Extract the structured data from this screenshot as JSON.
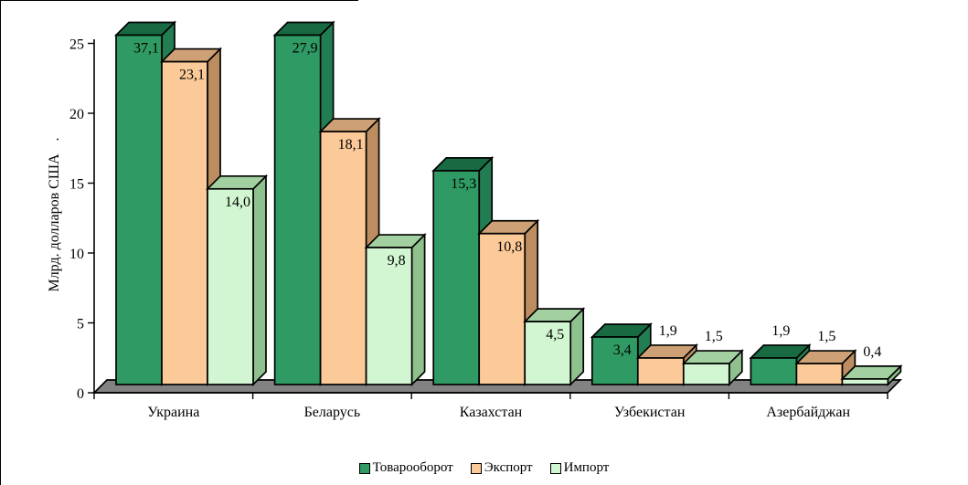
{
  "chart_data": {
    "type": "bar",
    "projection": "3d-oblique",
    "title": "",
    "ylabel": "Млрд. долларов США",
    "ylabel_suffix": ".",
    "xlabel": "",
    "categories": [
      "Украина",
      "Беларусь",
      "Казахстан",
      "Узбекистан",
      "Азербайджан"
    ],
    "series": [
      {
        "name": "Товарооборот",
        "values": [
          37.1,
          27.9,
          15.3,
          3.4,
          1.9
        ],
        "labels": [
          "37,1",
          "27,9",
          "15,3",
          "3,4",
          "1,9"
        ],
        "color": "#2F9A63",
        "top_color": "#186A43",
        "side_color": "#227E52"
      },
      {
        "name": "Экспорт",
        "values": [
          23.1,
          18.1,
          10.8,
          1.9,
          1.5
        ],
        "labels": [
          "23,1",
          "18,1",
          "10,8",
          "1,9",
          "1,5"
        ],
        "color": "#FCCA98",
        "top_color": "#CDA175",
        "side_color": "#BC8D60"
      },
      {
        "name": "Импорт",
        "values": [
          14.0,
          9.8,
          4.5,
          1.5,
          0.4
        ],
        "labels": [
          "14,0",
          "9,8",
          "4,5",
          "1,5",
          "0,4"
        ],
        "color": "#D2F6D1",
        "top_color": "#A2D0A0",
        "side_color": "#8EC18E"
      }
    ],
    "y_ticks": [
      "0",
      "5",
      "10",
      "15",
      "20",
      "25"
    ],
    "y_tick_values": [
      0,
      5,
      10,
      15,
      20,
      25
    ],
    "ylim": [
      0,
      25
    ],
    "bars_clipped_at_axis_max": true,
    "gridlines": false,
    "legend_position": "bottom",
    "floor_color": "#828282",
    "outline_color": "#000000",
    "label_decimal_separator": ","
  }
}
